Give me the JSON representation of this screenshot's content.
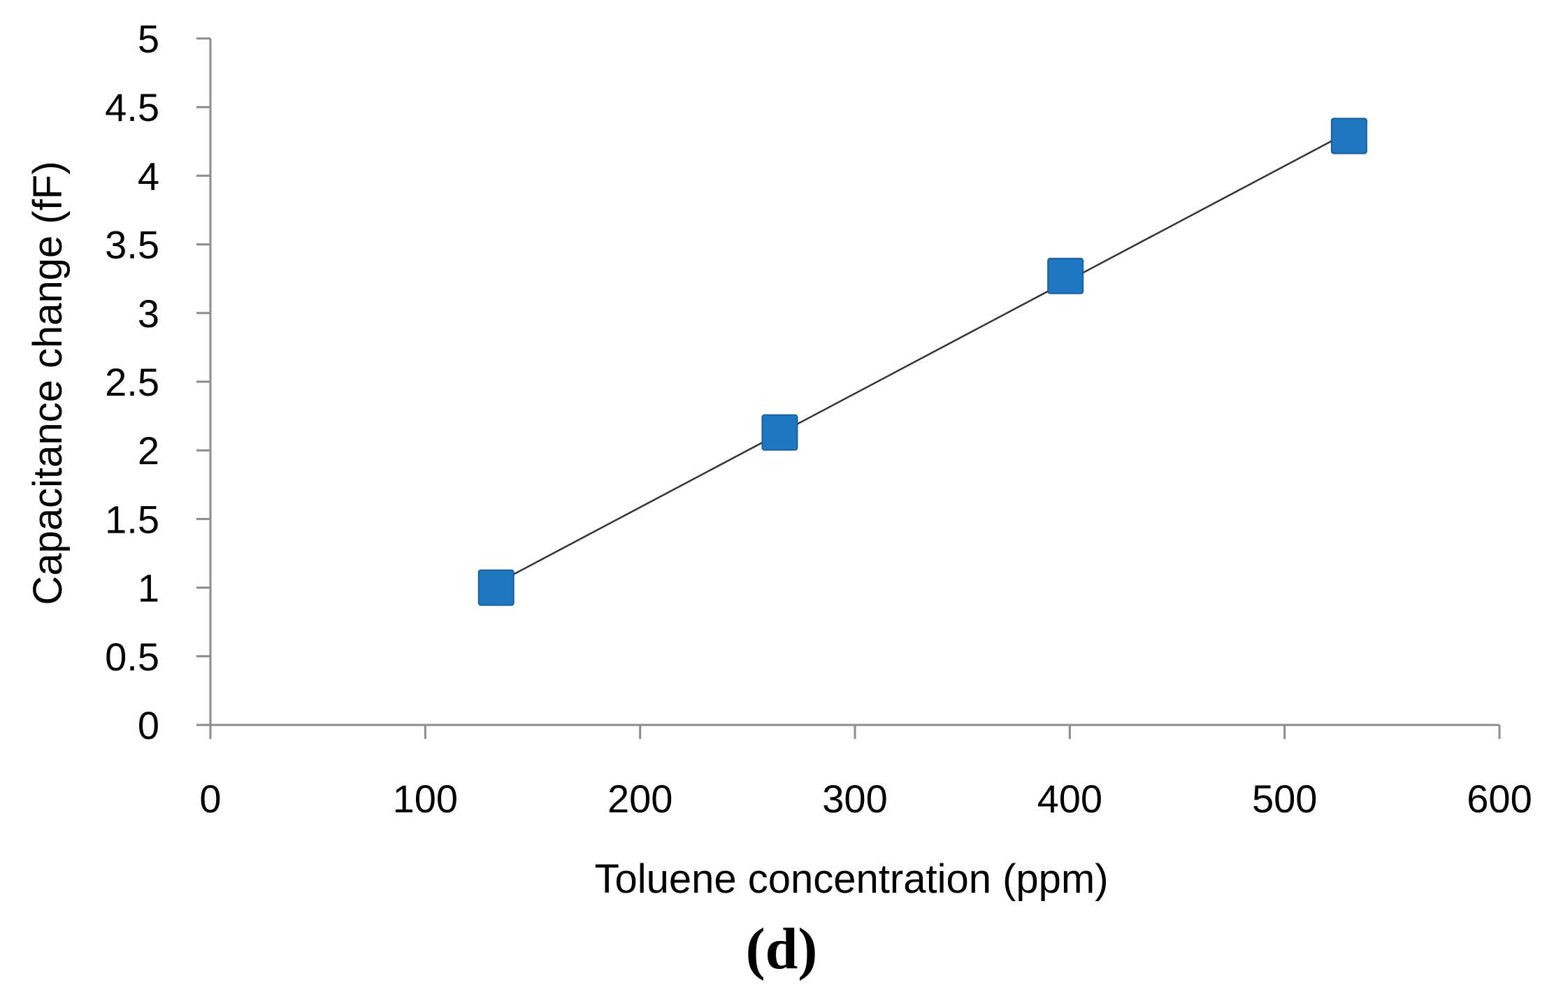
{
  "chart_data": {
    "type": "scatter",
    "xlabel": "Toluene concentration (ppm)",
    "ylabel": "Capacitance change (fF)",
    "panel_label": "(d)",
    "xlim": [
      0,
      600
    ],
    "ylim": [
      0,
      5
    ],
    "x_ticks": [
      "0",
      "100",
      "200",
      "300",
      "400",
      "500",
      "600"
    ],
    "y_ticks": [
      "0",
      "0.5",
      "1",
      "1.5",
      "2",
      "2.5",
      "3",
      "3.5",
      "4",
      "4.5",
      "5"
    ],
    "grid": false,
    "series": [
      {
        "marker": "square",
        "color": "#1f77c0",
        "points": [
          {
            "x": 133,
            "y": 1.0
          },
          {
            "x": 265,
            "y": 2.13
          },
          {
            "x": 398,
            "y": 3.27
          },
          {
            "x": 530,
            "y": 4.29
          }
        ]
      }
    ],
    "trendline": {
      "type": "linear",
      "color": "#333333",
      "from": {
        "x": 133,
        "y": 1.03
      },
      "to": {
        "x": 530,
        "y": 4.32
      }
    }
  }
}
